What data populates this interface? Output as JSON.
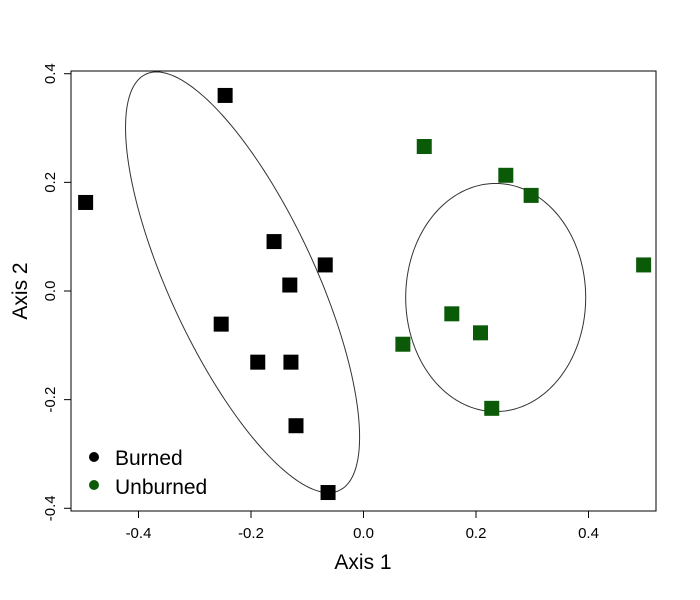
{
  "chart_data": {
    "type": "scatter",
    "title": "",
    "xlabel": "Axis 1",
    "ylabel": "Axis 2",
    "xlim": [
      -0.52,
      0.52
    ],
    "ylim": [
      -0.405,
      0.405
    ],
    "xticks": [
      "-0.4",
      "-0.2",
      "0.0",
      "0.2",
      "0.4"
    ],
    "yticks": [
      "-0.4",
      "-0.2",
      "0.0",
      "0.2",
      "0.4"
    ],
    "grid": false,
    "legend_position": "bottom-left",
    "colors": {
      "Burned": "#000000",
      "Unburned": "#0b5a08"
    },
    "series": [
      {
        "name": "Burned",
        "points": [
          {
            "x": -0.494,
            "y": 0.163
          },
          {
            "x": -0.246,
            "y": 0.36
          },
          {
            "x": -0.159,
            "y": 0.091
          },
          {
            "x": -0.131,
            "y": 0.011
          },
          {
            "x": -0.068,
            "y": 0.048
          },
          {
            "x": -0.253,
            "y": -0.061
          },
          {
            "x": -0.188,
            "y": -0.131
          },
          {
            "x": -0.129,
            "y": -0.131
          },
          {
            "x": -0.12,
            "y": -0.248
          },
          {
            "x": -0.063,
            "y": -0.371
          }
        ],
        "ellipse": {
          "center": [
            -0.215,
            0.016
          ],
          "semi_major": 0.42,
          "semi_minor": 0.13,
          "angle_deg": -66
        }
      },
      {
        "name": "Unburned",
        "points": [
          {
            "x": 0.108,
            "y": 0.266
          },
          {
            "x": 0.253,
            "y": 0.213
          },
          {
            "x": 0.298,
            "y": 0.176
          },
          {
            "x": 0.498,
            "y": 0.048
          },
          {
            "x": 0.157,
            "y": -0.042
          },
          {
            "x": 0.208,
            "y": -0.077
          },
          {
            "x": 0.07,
            "y": -0.098
          },
          {
            "x": 0.228,
            "y": -0.216
          }
        ],
        "ellipse": {
          "center": [
            0.235,
            -0.012
          ],
          "semi_major": 0.16,
          "semi_minor": 0.21,
          "angle_deg": 0
        }
      }
    ],
    "legend": [
      {
        "label": "Burned"
      },
      {
        "label": "Unburned"
      }
    ]
  }
}
